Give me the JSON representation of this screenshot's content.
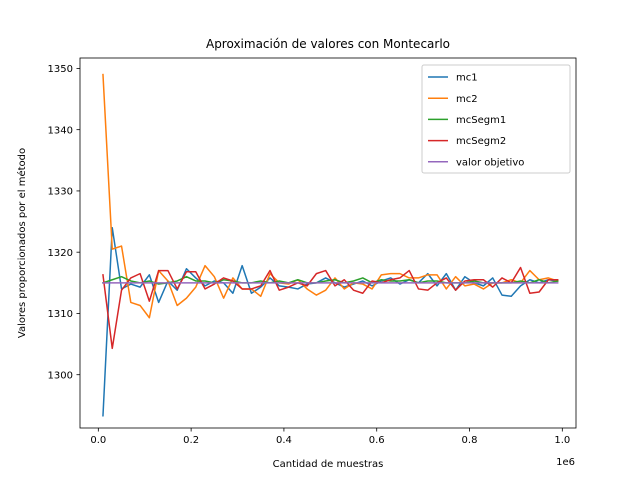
{
  "chart_data": {
    "type": "line",
    "title": "Aproximación de valores con Montecarlo",
    "xlabel": "Cantidad de muestras",
    "ylabel": "Valores proporcionados por el método",
    "x_offset_text": "1e6",
    "xlim": [
      -0.0395,
      1.0295
    ],
    "ylim": [
      1291.3,
      1351.7
    ],
    "xticks": [
      0.0,
      0.2,
      0.4,
      0.6,
      0.8,
      1.0
    ],
    "xtick_labels": [
      "0.0",
      "0.2",
      "0.4",
      "0.6",
      "0.8",
      "1.0"
    ],
    "yticks": [
      1300,
      1310,
      1320,
      1330,
      1340,
      1350
    ],
    "ytick_labels": [
      "1300",
      "1310",
      "1320",
      "1330",
      "1340",
      "1350"
    ],
    "legend_position": "top-right",
    "x": [
      0.01,
      0.03,
      0.05,
      0.07,
      0.09,
      0.11,
      0.13,
      0.15,
      0.17,
      0.19,
      0.21,
      0.23,
      0.25,
      0.27,
      0.29,
      0.31,
      0.33,
      0.35,
      0.37,
      0.39,
      0.41,
      0.43,
      0.45,
      0.47,
      0.49,
      0.51,
      0.53,
      0.55,
      0.57,
      0.59,
      0.61,
      0.63,
      0.65,
      0.67,
      0.69,
      0.71,
      0.73,
      0.75,
      0.77,
      0.79,
      0.81,
      0.83,
      0.85,
      0.87,
      0.89,
      0.91,
      0.93,
      0.95,
      0.97,
      0.99
    ],
    "series": [
      {
        "name": "mc1",
        "color": "#1f77b4",
        "values": [
          1293.3,
          1324.0,
          1314.0,
          1314.8,
          1314.3,
          1316.3,
          1311.8,
          1315.3,
          1313.8,
          1317.3,
          1315.8,
          1314.5,
          1315.3,
          1315.0,
          1313.3,
          1317.8,
          1313.3,
          1314.3,
          1315.8,
          1314.5,
          1314.3,
          1314.0,
          1314.8,
          1315.0,
          1315.8,
          1315.0,
          1314.3,
          1314.8,
          1315.3,
          1314.5,
          1315.3,
          1315.8,
          1314.8,
          1315.5,
          1315.0,
          1316.5,
          1314.5,
          1316.5,
          1313.8,
          1316.0,
          1315.0,
          1314.5,
          1315.8,
          1313.0,
          1312.8,
          1314.5,
          1315.5,
          1315.0,
          1315.5,
          1315.3
        ]
      },
      {
        "name": "mc2",
        "color": "#ff7f0e",
        "values": [
          1349.0,
          1320.5,
          1321.0,
          1311.8,
          1311.3,
          1309.3,
          1317.0,
          1315.3,
          1311.3,
          1312.5,
          1314.3,
          1317.8,
          1316.0,
          1312.5,
          1315.8,
          1314.0,
          1314.0,
          1312.8,
          1316.5,
          1315.0,
          1314.8,
          1315.5,
          1314.0,
          1313.0,
          1313.8,
          1315.8,
          1314.0,
          1315.0,
          1314.8,
          1314.0,
          1316.3,
          1316.5,
          1316.5,
          1315.8,
          1315.8,
          1316.3,
          1316.3,
          1314.0,
          1316.0,
          1314.5,
          1314.8,
          1314.0,
          1315.0,
          1315.0,
          1315.5,
          1315.0,
          1317.0,
          1315.5,
          1315.8,
          1315.3
        ]
      },
      {
        "name": "mcSegm1",
        "color": "#2ca02c",
        "values": [
          1315.0,
          1315.5,
          1316.0,
          1315.3,
          1315.0,
          1315.3,
          1314.8,
          1315.0,
          1315.3,
          1316.0,
          1315.3,
          1315.3,
          1315.0,
          1315.5,
          1315.3,
          1315.0,
          1315.0,
          1315.3,
          1315.0,
          1315.3,
          1315.0,
          1315.5,
          1315.0,
          1315.0,
          1315.3,
          1315.5,
          1315.0,
          1315.3,
          1315.8,
          1315.0,
          1315.5,
          1315.3,
          1315.3,
          1315.5,
          1315.0,
          1315.3,
          1315.3,
          1315.0,
          1315.0,
          1315.0,
          1315.3,
          1315.0,
          1315.0,
          1315.0,
          1315.0,
          1315.3,
          1315.0,
          1315.5,
          1315.0,
          1315.3
        ]
      },
      {
        "name": "mcSegm2",
        "color": "#d62728",
        "values": [
          1316.3,
          1304.3,
          1313.8,
          1315.8,
          1316.5,
          1312.0,
          1317.0,
          1317.0,
          1314.0,
          1316.8,
          1316.8,
          1314.0,
          1314.8,
          1315.8,
          1315.3,
          1314.0,
          1314.0,
          1314.5,
          1317.0,
          1313.8,
          1314.3,
          1315.0,
          1314.5,
          1316.5,
          1317.0,
          1314.5,
          1315.5,
          1313.8,
          1313.3,
          1315.3,
          1315.0,
          1315.5,
          1315.8,
          1317.0,
          1314.0,
          1313.8,
          1315.0,
          1315.8,
          1313.8,
          1315.3,
          1315.5,
          1315.5,
          1314.3,
          1315.8,
          1315.0,
          1317.5,
          1313.3,
          1313.5,
          1315.5,
          1315.5
        ]
      },
      {
        "name": "valor objetivo",
        "color": "#9467bd",
        "values": [
          1315.0,
          1315.0,
          1315.0,
          1315.0,
          1315.0,
          1315.0,
          1315.0,
          1315.0,
          1315.0,
          1315.0,
          1315.0,
          1315.0,
          1315.0,
          1315.0,
          1315.0,
          1315.0,
          1315.0,
          1315.0,
          1315.0,
          1315.0,
          1315.0,
          1315.0,
          1315.0,
          1315.0,
          1315.0,
          1315.0,
          1315.0,
          1315.0,
          1315.0,
          1315.0,
          1315.0,
          1315.0,
          1315.0,
          1315.0,
          1315.0,
          1315.0,
          1315.0,
          1315.0,
          1315.0,
          1315.0,
          1315.0,
          1315.0,
          1315.0,
          1315.0,
          1315.0,
          1315.0,
          1315.0,
          1315.0,
          1315.0,
          1315.0
        ]
      }
    ]
  }
}
